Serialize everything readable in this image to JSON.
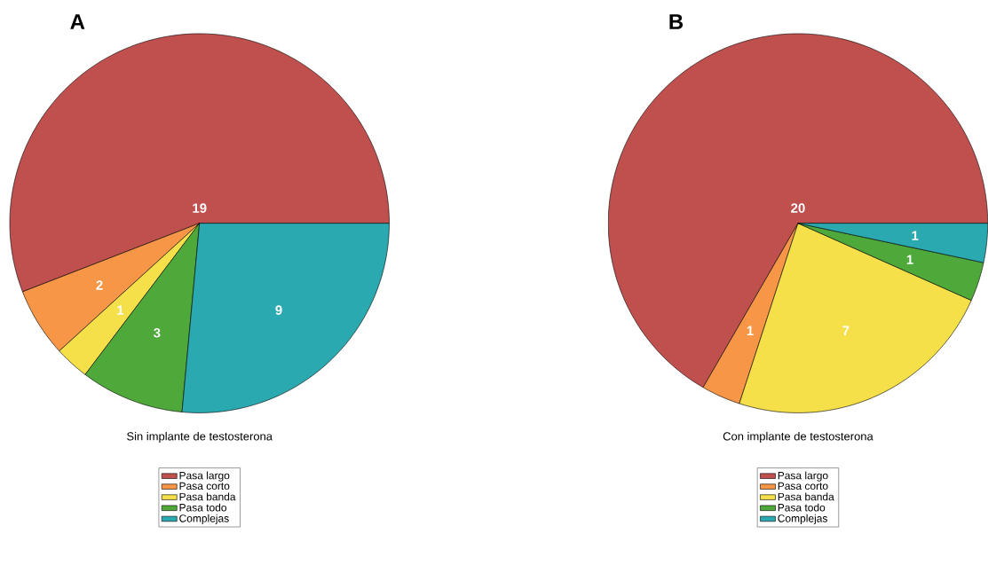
{
  "chart_data": [
    {
      "type": "pie",
      "title": "A",
      "xlabel": "Sin implante de testosterona",
      "categories": [
        "Pasa largo",
        "Pasa corto",
        "Pasa banda",
        "Pasa todo",
        "Complejas"
      ],
      "values": [
        19,
        2,
        1,
        3,
        9
      ],
      "colors": [
        "#c0504d",
        "#f79646",
        "#f5e04a",
        "#4ea83a",
        "#2aaab0"
      ],
      "data_labels": true,
      "legend": "bottom"
    },
    {
      "type": "pie",
      "title": "B",
      "xlabel": "Con implante de testosterona",
      "categories": [
        "Pasa largo",
        "Pasa corto",
        "Pasa banda",
        "Pasa todo",
        "Complejas"
      ],
      "values": [
        20,
        1,
        7,
        1,
        1
      ],
      "colors": [
        "#c0504d",
        "#f79646",
        "#f5e04a",
        "#4ea83a",
        "#2aaab0"
      ],
      "data_labels": true,
      "legend": "bottom"
    }
  ]
}
